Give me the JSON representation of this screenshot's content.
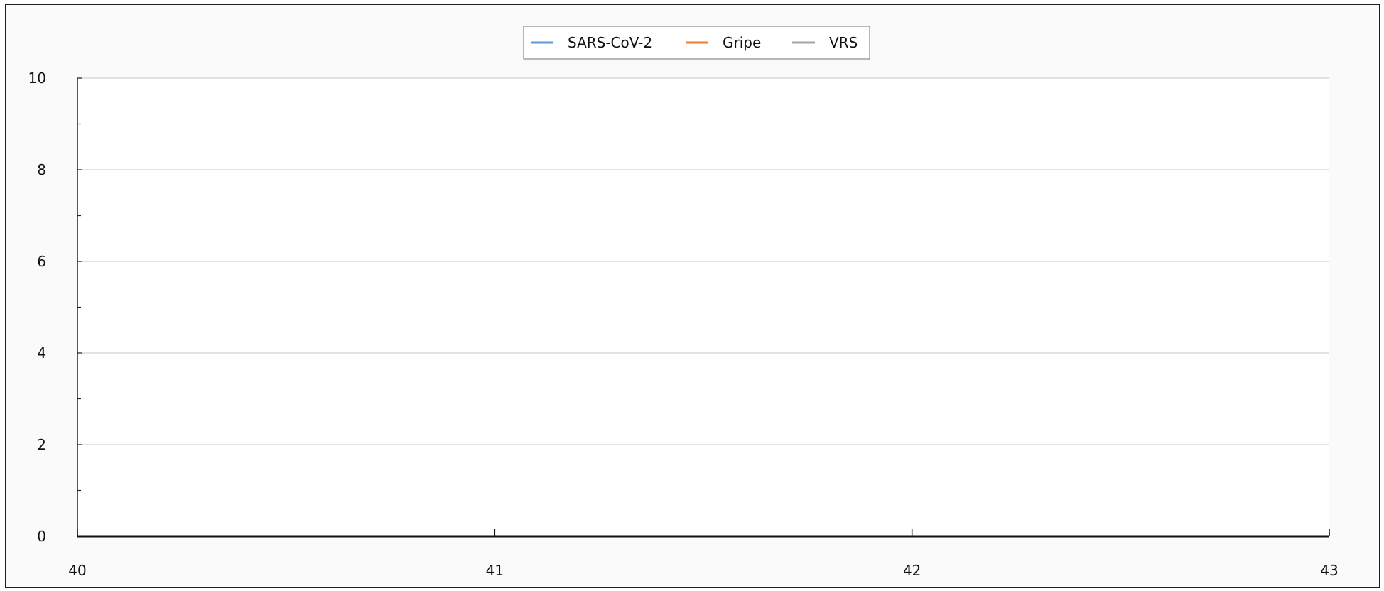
{
  "chart_data": {
    "type": "line",
    "title": "",
    "xlabel": "",
    "ylabel": "",
    "x": [
      40,
      41,
      42,
      43
    ],
    "xlim": [
      40,
      43
    ],
    "ylim": [
      0,
      10
    ],
    "x_ticks": [
      "40",
      "41",
      "42",
      "43"
    ],
    "y_ticks": [
      "0",
      "2",
      "4",
      "6",
      "8",
      "10"
    ],
    "grid": true,
    "legend_position": "top-center",
    "series": [
      {
        "name": "SARS-CoV-2",
        "color": "#5b9bd5",
        "values": [
          0,
          0,
          0,
          0
        ]
      },
      {
        "name": "Gripe",
        "color": "#ed7d31",
        "values": [
          0,
          0,
          0,
          0
        ]
      },
      {
        "name": "VRS",
        "color": "#a5a5a5",
        "values": [
          0,
          0,
          0,
          0
        ]
      }
    ]
  }
}
